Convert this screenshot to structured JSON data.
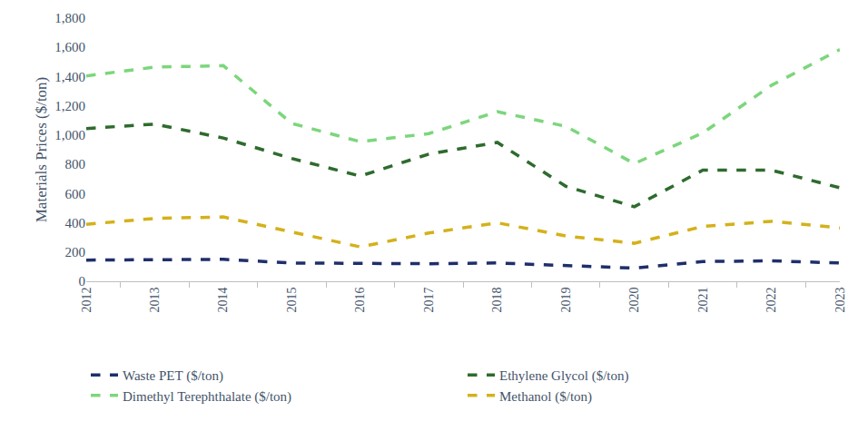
{
  "chart_data": {
    "type": "line",
    "y_label": "Materials Prices ($/ton)",
    "categories": [
      "2012",
      "2013",
      "2014",
      "2015",
      "2016",
      "2017",
      "2018",
      "2019",
      "2020",
      "2021",
      "2022",
      "2023"
    ],
    "series": [
      {
        "name": "Waste PET ($/ton)",
        "color": "#1f2f6b",
        "line_style": "dashed",
        "values": [
          145,
          145,
          150,
          125,
          120,
          120,
          125,
          110,
          90,
          135,
          140,
          125
        ]
      },
      {
        "name": "Ethylene Glycol ($/ton)",
        "color": "#2e6b2e",
        "line_style": "dashed",
        "values": [
          1045,
          1075,
          980,
          840,
          720,
          870,
          950,
          650,
          510,
          760,
          760,
          640
        ]
      },
      {
        "name": "Dimethyl Terephthalate ($/ton)",
        "color": "#7cd67c",
        "line_style": "dashed",
        "values": [
          1405,
          1465,
          1475,
          1080,
          955,
          1010,
          1160,
          1060,
          805,
          1015,
          1340,
          1585
        ]
      },
      {
        "name": "Methanol ($/ton)",
        "color": "#d4b11a",
        "line_style": "dashed",
        "values": [
          390,
          430,
          440,
          335,
          235,
          330,
          400,
          310,
          260,
          375,
          410,
          365
        ]
      }
    ],
    "ylim": [
      0,
      1800
    ],
    "yticks": [
      0,
      200,
      400,
      600,
      800,
      {
        "value": 1000,
        "label": "1,000"
      },
      {
        "value": 1200,
        "label": "1,200"
      },
      {
        "value": 1400,
        "label": "1,400"
      },
      {
        "value": 1600,
        "label": "1,600"
      },
      {
        "value": 1800,
        "label": "1,800"
      }
    ],
    "grid": false,
    "legend": "bottom"
  }
}
